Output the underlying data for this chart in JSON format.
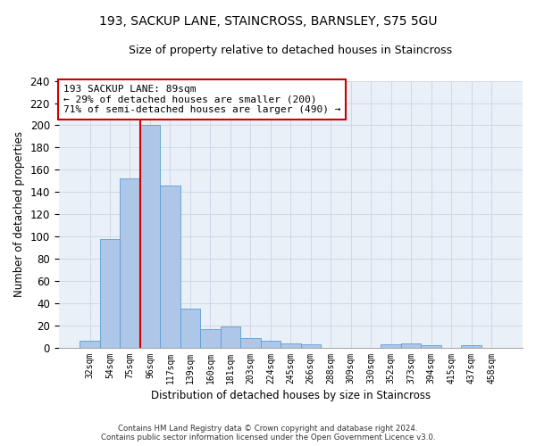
{
  "title": "193, SACKUP LANE, STAINCROSS, BARNSLEY, S75 5GU",
  "subtitle": "Size of property relative to detached houses in Staincross",
  "xlabel": "Distribution of detached houses by size in Staincross",
  "ylabel": "Number of detached properties",
  "categories": [
    "32sqm",
    "54sqm",
    "75sqm",
    "96sqm",
    "117sqm",
    "139sqm",
    "160sqm",
    "181sqm",
    "203sqm",
    "224sqm",
    "245sqm",
    "266sqm",
    "288sqm",
    "309sqm",
    "330sqm",
    "352sqm",
    "373sqm",
    "394sqm",
    "415sqm",
    "437sqm",
    "458sqm"
  ],
  "values": [
    6,
    98,
    152,
    200,
    146,
    35,
    17,
    19,
    9,
    6,
    4,
    3,
    0,
    0,
    0,
    3,
    4,
    2,
    0,
    2,
    0
  ],
  "bar_color": "#aec6e8",
  "bar_edge_color": "#5a9fd4",
  "grid_color": "#d0d8e8",
  "background_color": "#eaf0f8",
  "annotation_text": "193 SACKUP LANE: 89sqm\n← 29% of detached houses are smaller (200)\n71% of semi-detached houses are larger (490) →",
  "annotation_box_color": "#ffffff",
  "annotation_box_edge": "#cc0000",
  "vline_x_index": 3,
  "vline_color": "#cc0000",
  "footer_line1": "Contains HM Land Registry data © Crown copyright and database right 2024.",
  "footer_line2": "Contains public sector information licensed under the Open Government Licence v3.0.",
  "ylim": [
    0,
    240
  ],
  "yticks": [
    0,
    20,
    40,
    60,
    80,
    100,
    120,
    140,
    160,
    180,
    200,
    220,
    240
  ]
}
